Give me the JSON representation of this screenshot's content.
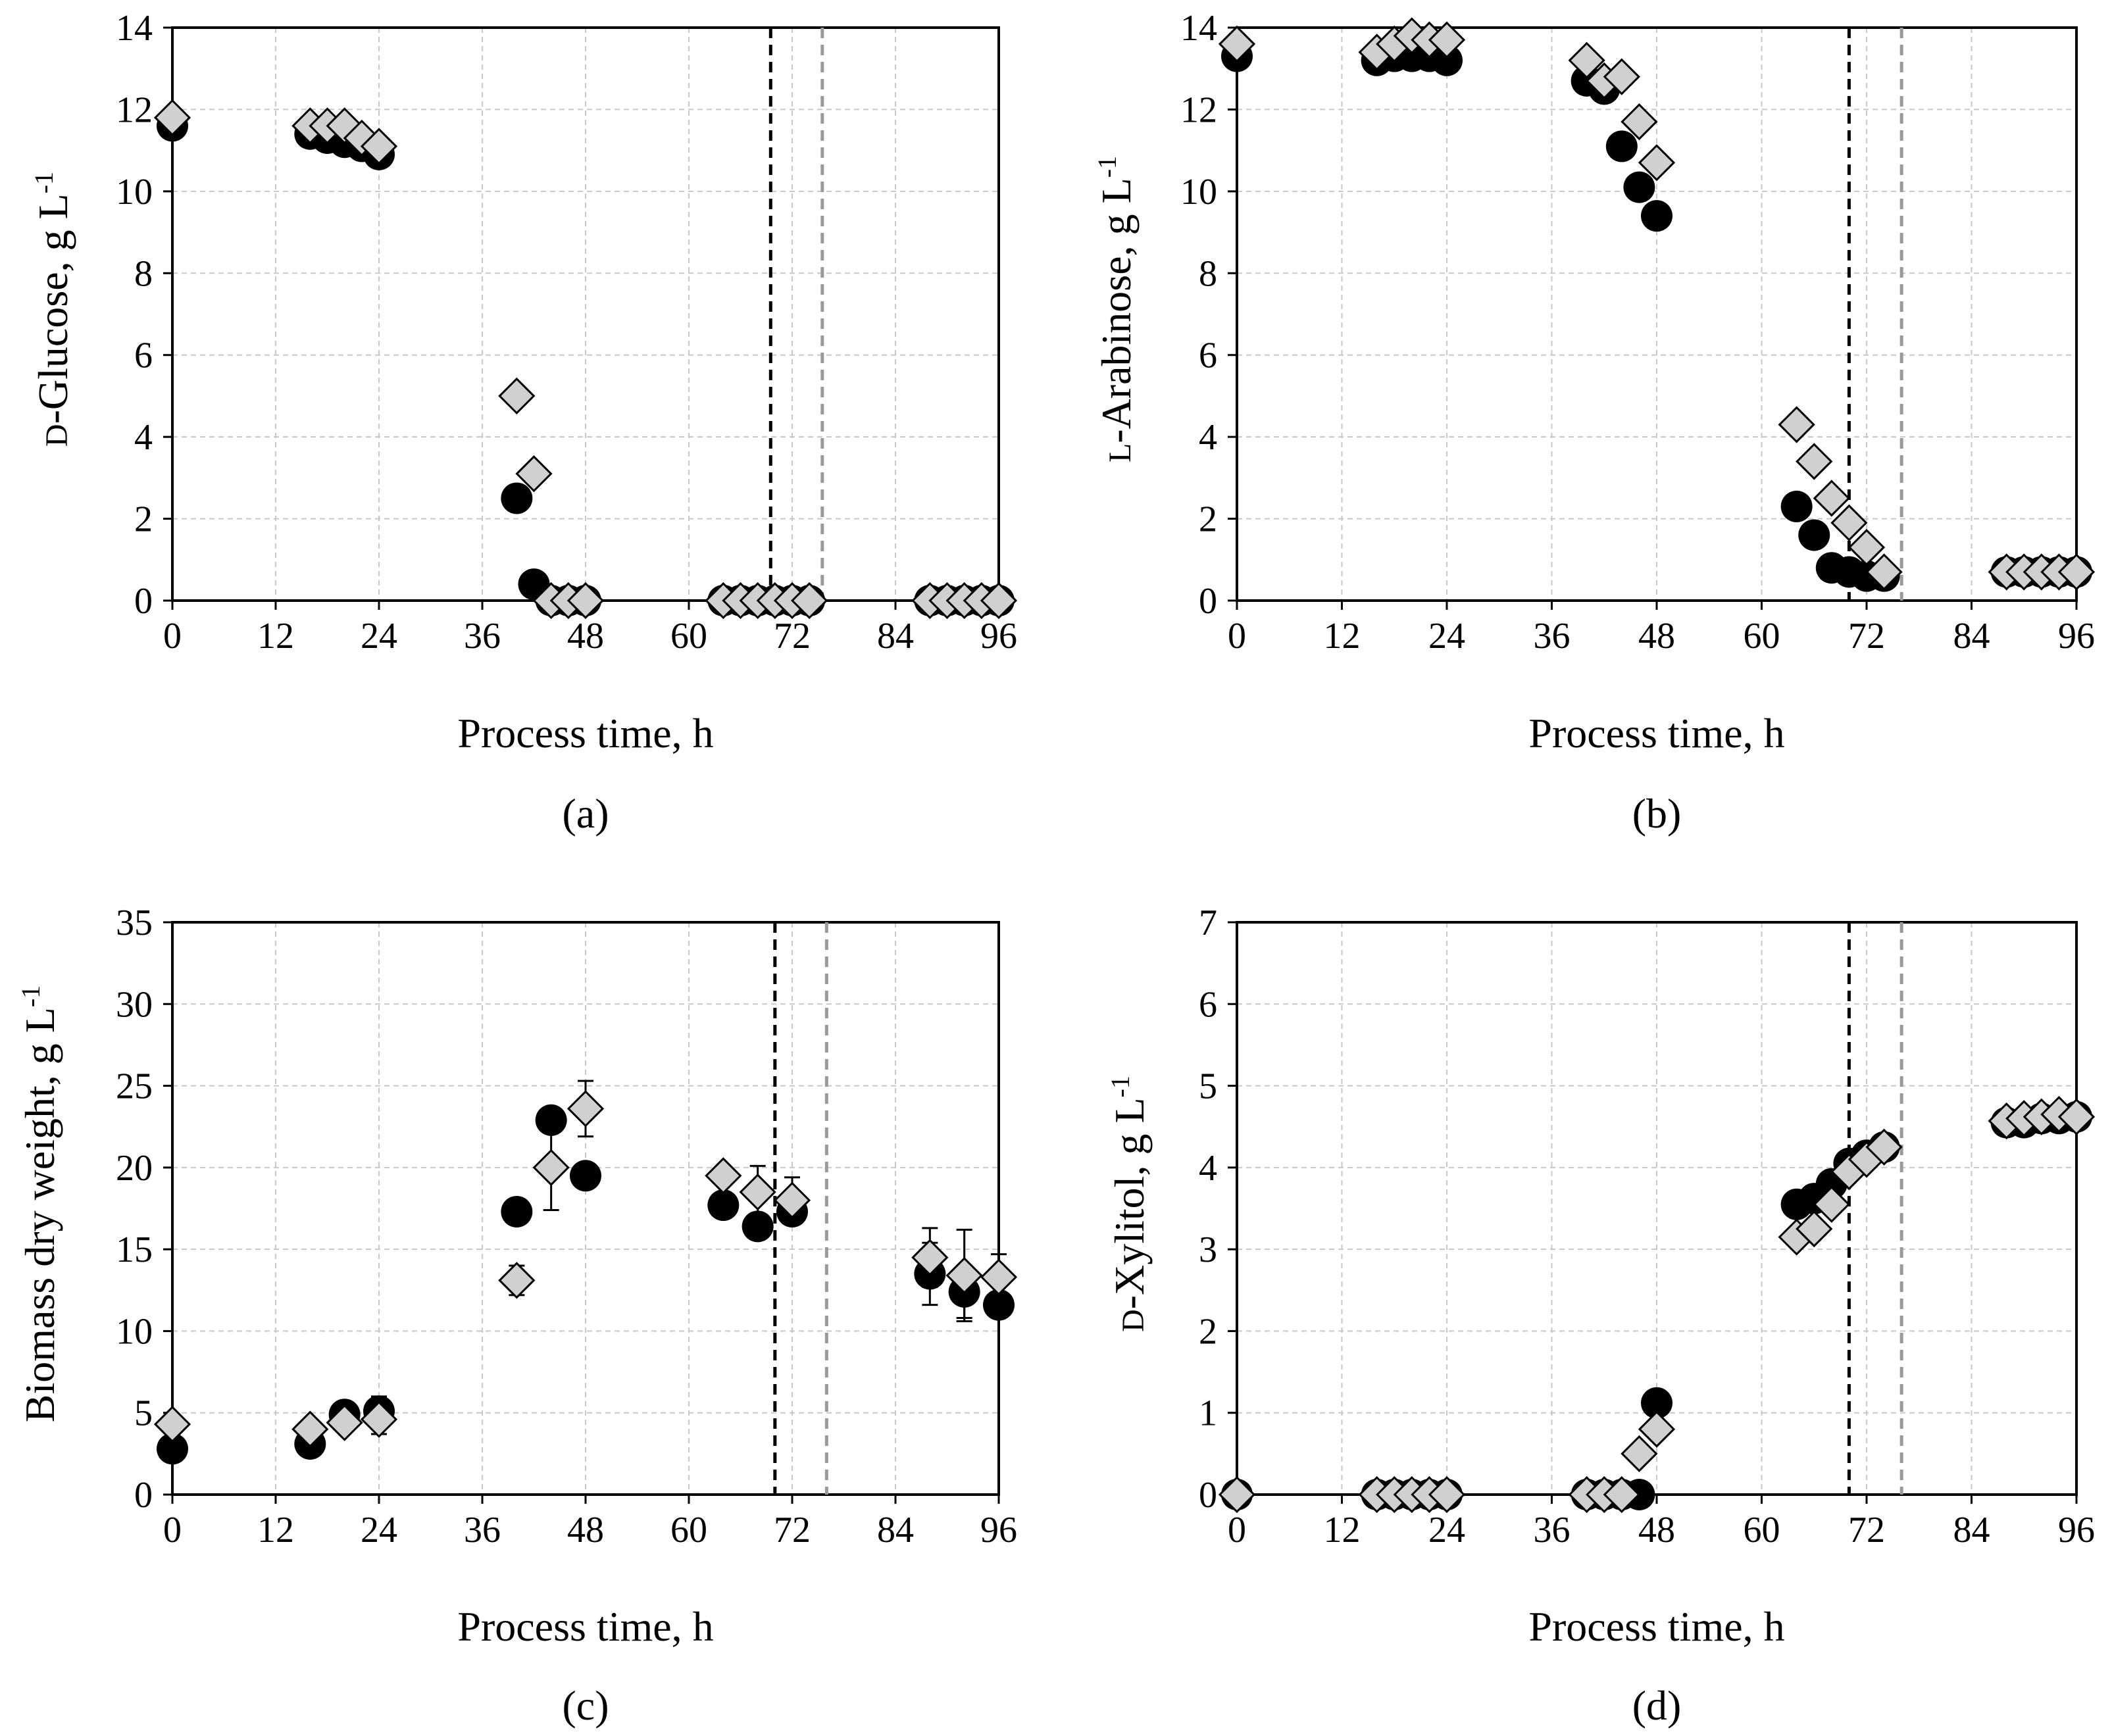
{
  "colors": {
    "circle": "#000000",
    "diamond_fill": "#d0d0d0",
    "diamond_stroke": "#000000",
    "vline_black": "#000000",
    "vline_gray": "#9a9a9a"
  },
  "chart_data": [
    {
      "id": "a",
      "type": "scatter",
      "caption": "(a)",
      "xlabel": "Process time, h",
      "ylabel_pre": "",
      "ylabel_sc": "D",
      "ylabel_main": "-Glucose, g L",
      "ylabel_sup": "-1",
      "xlim": [
        0,
        96
      ],
      "ylim": [
        0,
        14
      ],
      "xticks": [
        0,
        12,
        24,
        36,
        48,
        60,
        72,
        84,
        96
      ],
      "yticks": [
        0,
        2,
        4,
        6,
        8,
        10,
        12,
        14
      ],
      "vlines": [
        69.5,
        75.5
      ],
      "series": [
        {
          "name": "circles",
          "marker": "circle",
          "x": [
            0,
            16,
            18,
            20,
            22,
            24,
            40,
            42,
            44,
            46,
            48,
            64,
            66,
            68,
            70,
            72,
            74,
            88,
            90,
            92,
            94,
            96
          ],
          "y": [
            11.6,
            11.4,
            11.3,
            11.2,
            11.1,
            10.9,
            2.5,
            0.4,
            0,
            0,
            0,
            0,
            0,
            0,
            0,
            0,
            0,
            0,
            0,
            0,
            0,
            0
          ]
        },
        {
          "name": "diamonds",
          "marker": "diamond",
          "x": [
            0,
            16,
            18,
            20,
            22,
            24,
            40,
            42,
            44,
            46,
            48,
            64,
            66,
            68,
            70,
            72,
            74,
            88,
            90,
            92,
            94,
            96
          ],
          "y": [
            11.8,
            11.6,
            11.6,
            11.6,
            11.3,
            11.1,
            5.0,
            3.1,
            0,
            0,
            0,
            0,
            0,
            0,
            0,
            0,
            0,
            0,
            0,
            0,
            0,
            0
          ]
        }
      ]
    },
    {
      "id": "b",
      "type": "scatter",
      "caption": "(b)",
      "xlabel": "Process time, h",
      "ylabel_pre": "",
      "ylabel_sc": "L",
      "ylabel_main": "-Arabinose, g L",
      "ylabel_sup": "-1",
      "xlim": [
        0,
        96
      ],
      "ylim": [
        0,
        14
      ],
      "xticks": [
        0,
        12,
        24,
        36,
        48,
        60,
        72,
        84,
        96
      ],
      "yticks": [
        0,
        2,
        4,
        6,
        8,
        10,
        12,
        14
      ],
      "vlines": [
        70,
        76
      ],
      "series": [
        {
          "name": "circles",
          "marker": "circle",
          "x": [
            0,
            16,
            18,
            20,
            22,
            24,
            40,
            42,
            44,
            46,
            48,
            64,
            66,
            68,
            70,
            72,
            74,
            88,
            90,
            92,
            94,
            96
          ],
          "y": [
            13.3,
            13.2,
            13.3,
            13.3,
            13.3,
            13.2,
            12.7,
            12.5,
            11.1,
            10.1,
            9.4,
            2.3,
            1.6,
            0.8,
            0.7,
            0.6,
            0.6,
            0.7,
            0.7,
            0.7,
            0.7,
            0.7
          ]
        },
        {
          "name": "diamonds",
          "marker": "diamond",
          "x": [
            0,
            16,
            18,
            20,
            22,
            24,
            40,
            42,
            44,
            46,
            48,
            64,
            66,
            68,
            70,
            72,
            74,
            88,
            90,
            92,
            94,
            96
          ],
          "y": [
            13.6,
            13.4,
            13.6,
            13.8,
            13.7,
            13.7,
            13.2,
            12.7,
            12.8,
            11.7,
            10.7,
            4.3,
            3.4,
            2.5,
            1.9,
            1.3,
            0.7,
            0.7,
            0.7,
            0.7,
            0.7,
            0.7
          ]
        }
      ]
    },
    {
      "id": "c",
      "type": "scatter",
      "caption": "(c)",
      "xlabel": "Process time, h",
      "ylabel_pre": "Biomass dry weight, g L",
      "ylabel_sc": "",
      "ylabel_main": "",
      "ylabel_sup": "-1",
      "xlim": [
        0,
        96
      ],
      "ylim": [
        0,
        35
      ],
      "xticks": [
        0,
        12,
        24,
        36,
        48,
        60,
        72,
        84,
        96
      ],
      "yticks": [
        0,
        5,
        10,
        15,
        20,
        25,
        30,
        35
      ],
      "vlines": [
        70,
        76
      ],
      "series": [
        {
          "name": "circles",
          "marker": "circle",
          "x": [
            0,
            16,
            20,
            24,
            40,
            44,
            48,
            64,
            68,
            72,
            88,
            92,
            96
          ],
          "y": [
            2.8,
            3.1,
            4.9,
            5.1,
            17.3,
            22.9,
            19.5,
            17.7,
            16.4,
            17.3,
            13.5,
            12.4,
            11.6
          ],
          "err": [
            0,
            0,
            0,
            0.9,
            0,
            0,
            0,
            0,
            0,
            0,
            1.9,
            1.6,
            0
          ]
        },
        {
          "name": "diamonds",
          "marker": "diamond",
          "x": [
            0,
            16,
            20,
            24,
            40,
            44,
            48,
            64,
            68,
            72,
            88,
            92,
            96
          ],
          "y": [
            4.3,
            4.0,
            4.4,
            4.6,
            13.1,
            20.0,
            23.6,
            19.5,
            18.5,
            18.0,
            14.5,
            13.4,
            13.3
          ],
          "err": [
            0,
            0,
            0,
            0.9,
            0.9,
            2.6,
            1.7,
            0,
            1.6,
            1.4,
            1.8,
            2.8,
            1.4
          ]
        }
      ]
    },
    {
      "id": "d",
      "type": "scatter",
      "caption": "(d)",
      "xlabel": "Process time, h",
      "ylabel_pre": "",
      "ylabel_sc": "D",
      "ylabel_main": "-Xylitol, g L",
      "ylabel_sup": "-1",
      "xlim": [
        0,
        96
      ],
      "ylim": [
        0,
        7
      ],
      "xticks": [
        0,
        12,
        24,
        36,
        48,
        60,
        72,
        84,
        96
      ],
      "yticks": [
        0,
        1,
        2,
        3,
        4,
        5,
        6,
        7
      ],
      "vlines": [
        70,
        76
      ],
      "series": [
        {
          "name": "circles",
          "marker": "circle",
          "x": [
            0,
            16,
            18,
            20,
            22,
            24,
            40,
            42,
            44,
            46,
            48,
            64,
            66,
            68,
            70,
            72,
            74,
            88,
            90,
            92,
            94,
            96
          ],
          "y": [
            0,
            0,
            0,
            0,
            0,
            0,
            0,
            0,
            0,
            0,
            1.12,
            3.55,
            3.62,
            3.8,
            4.05,
            4.15,
            4.25,
            4.55,
            4.55,
            4.6,
            4.6,
            4.62
          ]
        },
        {
          "name": "diamonds",
          "marker": "diamond",
          "x": [
            0,
            16,
            18,
            20,
            22,
            24,
            40,
            42,
            44,
            46,
            48,
            64,
            66,
            68,
            70,
            72,
            74,
            88,
            90,
            92,
            94,
            96
          ],
          "y": [
            0,
            0,
            0,
            0,
            0,
            0,
            0,
            0,
            0,
            0.5,
            0.8,
            3.15,
            3.25,
            3.55,
            3.95,
            4.1,
            4.25,
            4.57,
            4.6,
            4.62,
            4.65,
            4.62
          ]
        }
      ]
    }
  ]
}
